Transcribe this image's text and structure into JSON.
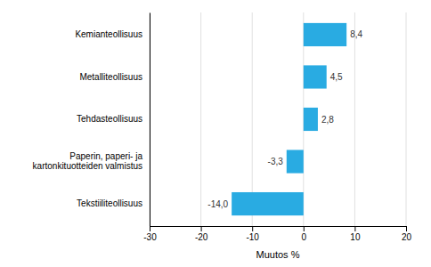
{
  "chart_data": {
    "type": "bar",
    "orientation": "horizontal",
    "categories": [
      "Tekstiiliteollisuus",
      "Paperin, paperi- ja kartonkituotteiden valmistus",
      "Tehdasteollisuus",
      "Metalliteollisuus",
      "Kemianteollisuus"
    ],
    "values": [
      -14.0,
      -3.3,
      2.8,
      4.5,
      8.4
    ],
    "value_labels": [
      "-14,0",
      "-3,3",
      "2,8",
      "4,5",
      "8,4"
    ],
    "data_labels": true,
    "color": "#29ABE2",
    "xlabel": "Muutos %",
    "xlim": [
      -30,
      20
    ],
    "xticks": [
      -30,
      -20,
      -10,
      0,
      10,
      20
    ],
    "grid": true
  }
}
